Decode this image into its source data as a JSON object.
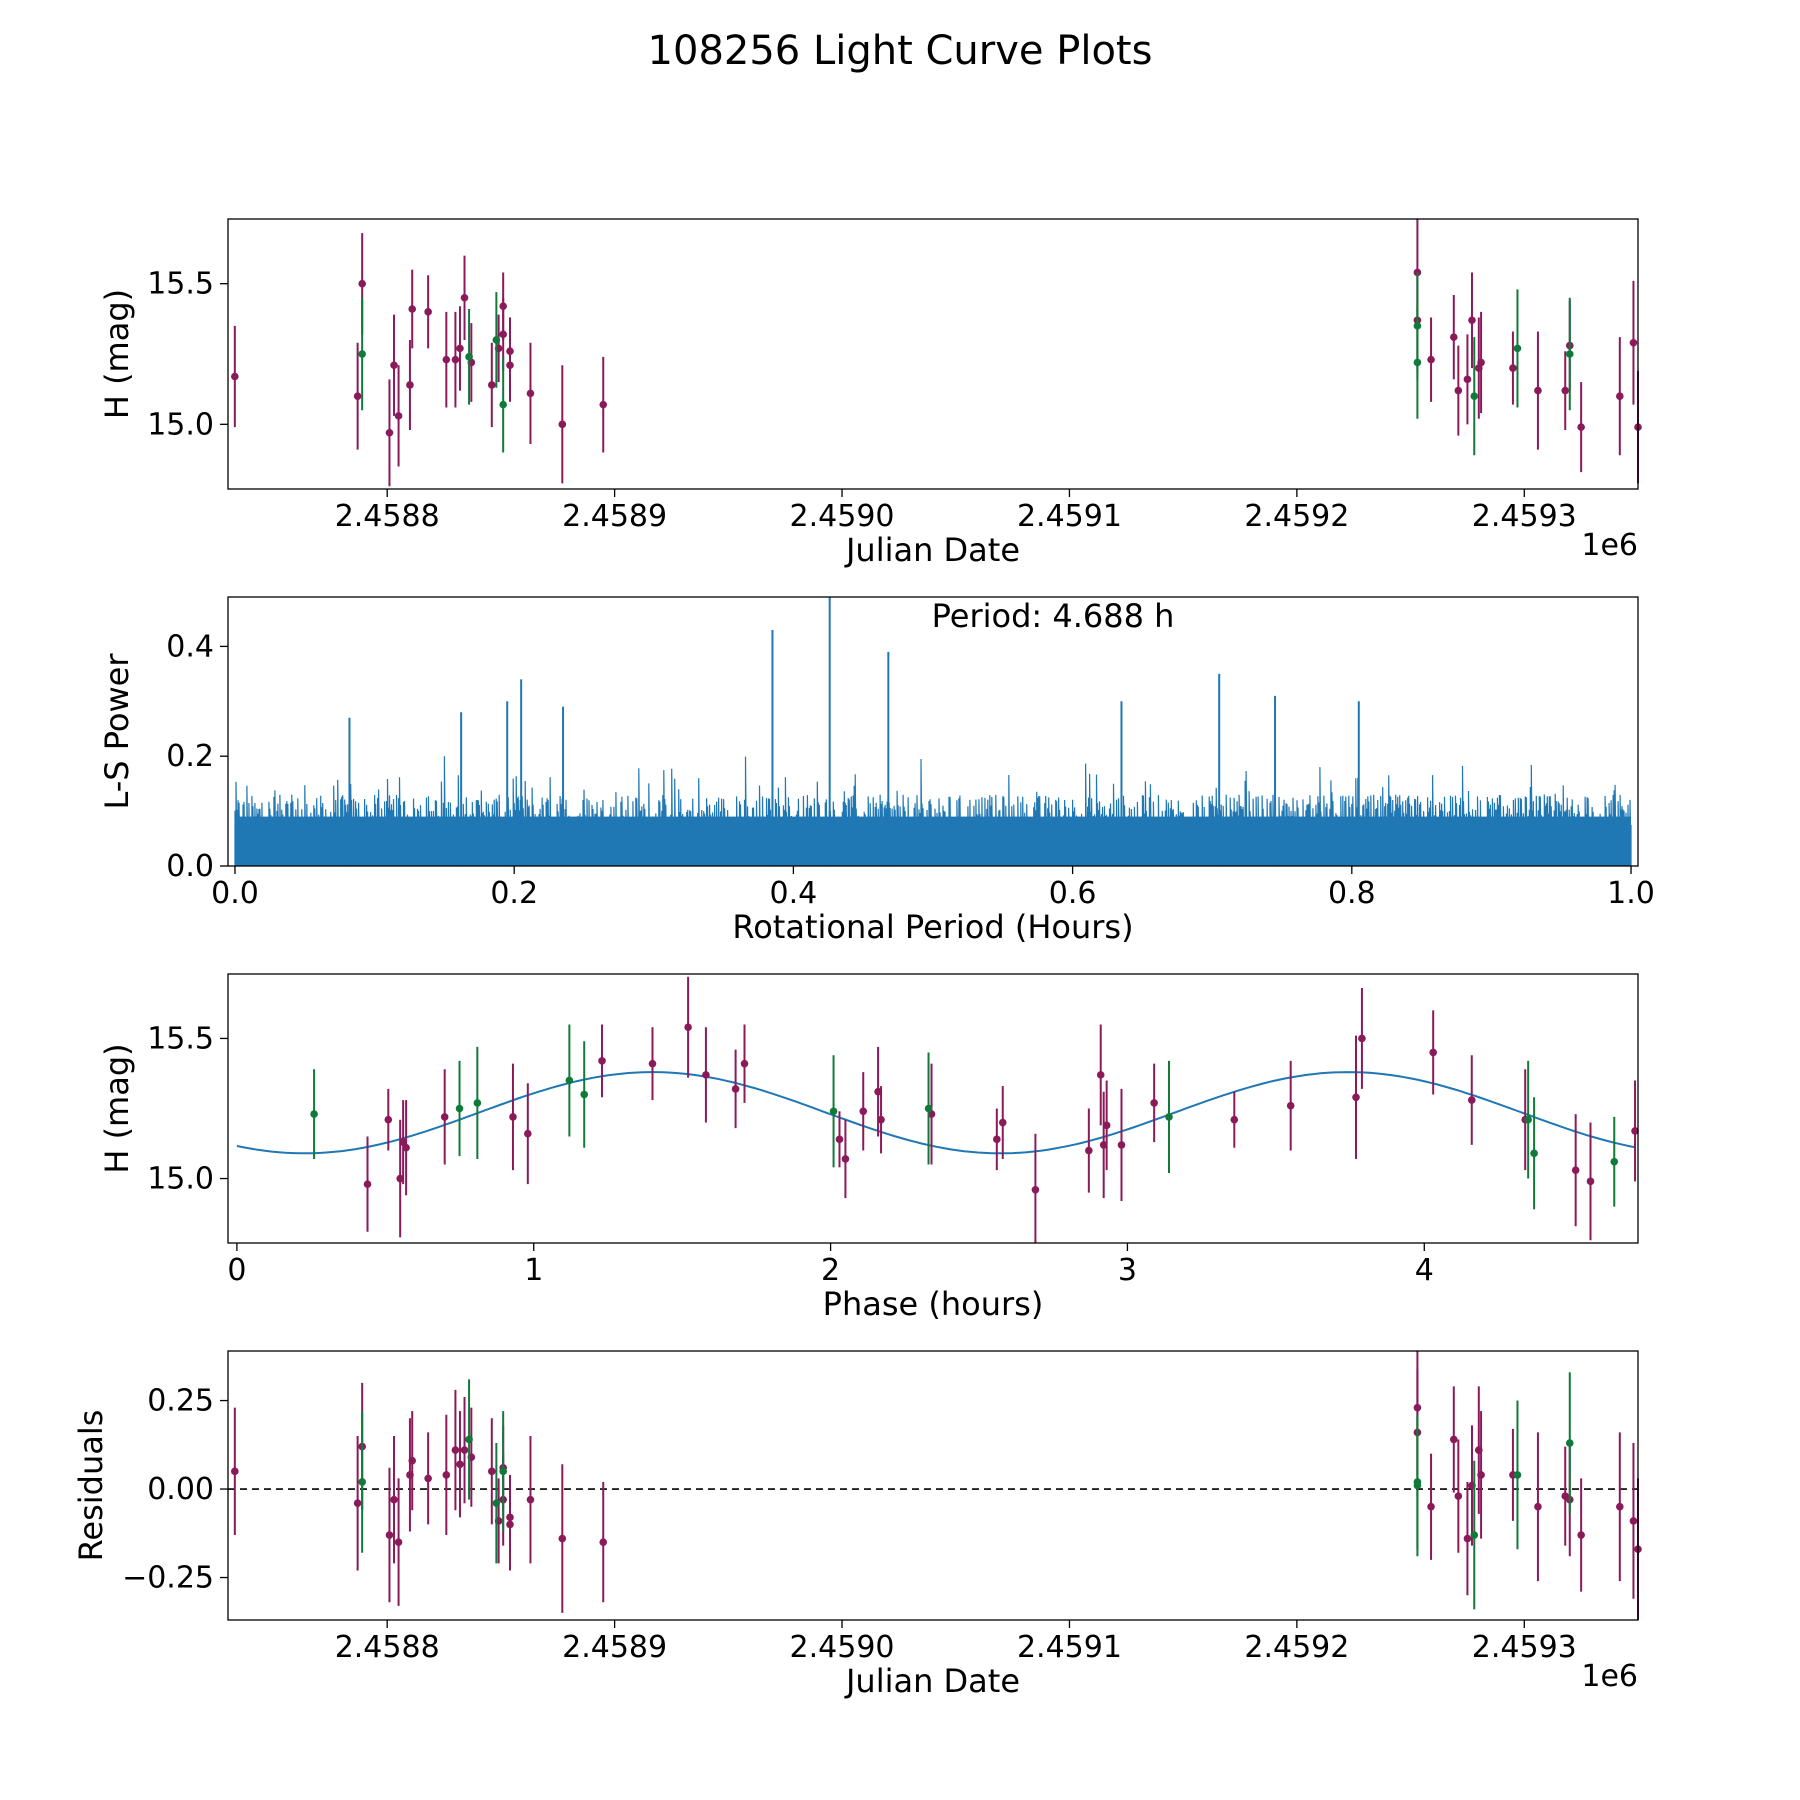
{
  "figure": {
    "title": "108256 Light Curve Plots"
  },
  "colors": {
    "purple": "#8B1A5A",
    "green": "#107A3A",
    "blue": "#1F77B4",
    "axis": "#000000"
  },
  "chart_data": [
    {
      "id": "lc",
      "type": "scatter",
      "xlabel": "Julian Date",
      "ylabel": "H (mag)",
      "offset_label": "1e6",
      "xlim": [
        2458730,
        2459350
      ],
      "ylim": [
        14.77,
        15.73
      ],
      "xticks": [
        2458800,
        2458900,
        2459000,
        2459100,
        2459200,
        2459300
      ],
      "xtick_labels": [
        "2.4588",
        "2.4589",
        "2.4590",
        "2.4591",
        "2.4592",
        "2.4593"
      ],
      "yticks": [
        15.0,
        15.5
      ],
      "ytick_labels": [
        "15.0",
        "15.5"
      ],
      "series": [
        {
          "name": "purple",
          "points": [
            [
              2458733,
              15.17,
              0.18
            ],
            [
              2458787,
              15.1,
              0.19
            ],
            [
              2458789,
              15.5,
              0.18
            ],
            [
              2458801,
              14.97,
              0.19
            ],
            [
              2458803,
              15.21,
              0.18
            ],
            [
              2458805,
              15.03,
              0.18
            ],
            [
              2458810,
              15.14,
              0.16
            ],
            [
              2458811,
              15.41,
              0.14
            ],
            [
              2458818,
              15.4,
              0.13
            ],
            [
              2458826,
              15.23,
              0.17
            ],
            [
              2458830,
              15.23,
              0.17
            ],
            [
              2458832,
              15.27,
              0.15
            ],
            [
              2458834,
              15.45,
              0.15
            ],
            [
              2458837,
              15.22,
              0.14
            ],
            [
              2458846,
              15.14,
              0.15
            ],
            [
              2458849,
              15.27,
              0.12
            ],
            [
              2458851,
              15.42,
              0.12
            ],
            [
              2458851,
              15.32,
              0.13
            ],
            [
              2458854,
              15.26,
              0.12
            ],
            [
              2458854,
              15.21,
              0.13
            ],
            [
              2458863,
              15.11,
              0.18
            ],
            [
              2458877,
              15.0,
              0.21
            ],
            [
              2458895,
              15.07,
              0.17
            ],
            [
              2459253,
              15.54,
              0.19
            ],
            [
              2459253,
              15.37,
              0.18
            ],
            [
              2459259,
              15.23,
              0.15
            ],
            [
              2459269,
              15.31,
              0.15
            ],
            [
              2459271,
              15.12,
              0.16
            ],
            [
              2459275,
              15.16,
              0.16
            ],
            [
              2459277,
              15.37,
              0.17
            ],
            [
              2459280,
              15.2,
              0.18
            ],
            [
              2459281,
              15.22,
              0.18
            ],
            [
              2459295,
              15.2,
              0.13
            ],
            [
              2459306,
              15.12,
              0.21
            ],
            [
              2459318,
              15.12,
              0.14
            ],
            [
              2459320,
              15.28,
              0.16
            ],
            [
              2459325,
              14.99,
              0.16
            ],
            [
              2459342,
              15.1,
              0.21
            ],
            [
              2459348,
              15.29,
              0.22
            ],
            [
              2459350,
              14.99,
              0.2
            ]
          ]
        },
        {
          "name": "green",
          "points": [
            [
              2458789,
              15.25,
              0.2
            ],
            [
              2458836,
              15.24,
              0.17
            ],
            [
              2458848,
              15.3,
              0.17
            ],
            [
              2458851,
              15.07,
              0.17
            ],
            [
              2459253,
              15.35,
              0.19
            ],
            [
              2459253,
              15.22,
              0.2
            ],
            [
              2459278,
              15.1,
              0.21
            ],
            [
              2459297,
              15.27,
              0.21
            ],
            [
              2459320,
              15.25,
              0.2
            ]
          ]
        }
      ]
    },
    {
      "id": "ls",
      "type": "line",
      "xlabel": "Rotational Period (Hours)",
      "ylabel": "L-S Power",
      "annotation": "Period: 4.688 h",
      "xlim": [
        -0.005,
        1.005
      ],
      "ylim": [
        0,
        0.49
      ],
      "xticks": [
        0.0,
        0.2,
        0.4,
        0.6,
        0.8,
        1.0
      ],
      "xtick_labels": [
        "0.0",
        "0.2",
        "0.4",
        "0.6",
        "0.8",
        "1.0"
      ],
      "yticks": [
        0.0,
        0.2,
        0.4
      ],
      "ytick_labels": [
        "0.0",
        "0.2",
        "0.4"
      ],
      "peaks": [
        [
          0.385,
          0.43
        ],
        [
          0.426,
          0.49
        ],
        [
          0.468,
          0.39
        ],
        [
          0.705,
          0.35
        ],
        [
          0.205,
          0.34
        ],
        [
          0.745,
          0.31
        ],
        [
          0.805,
          0.3
        ],
        [
          0.195,
          0.3
        ],
        [
          0.635,
          0.3
        ],
        [
          0.082,
          0.27
        ],
        [
          0.162,
          0.28
        ],
        [
          0.235,
          0.29
        ]
      ],
      "noise_level": 0.13
    },
    {
      "id": "phase",
      "type": "scatter",
      "xlabel": "Phase (hours)",
      "ylabel": "H (mag)",
      "xlim": [
        -0.03,
        4.72
      ],
      "ylim": [
        14.77,
        15.73
      ],
      "xticks": [
        0,
        1,
        2,
        3,
        4
      ],
      "xtick_labels": [
        "0",
        "1",
        "2",
        "3",
        "4"
      ],
      "yticks": [
        15.0,
        15.5
      ],
      "ytick_labels": [
        "15.0",
        "15.5"
      ],
      "model": {
        "mean": 15.235,
        "amplitude": 0.145,
        "peak_phase": 1.4,
        "period": 2.344
      },
      "series": [
        {
          "name": "purple",
          "points": [
            [
              0.44,
              14.98,
              0.17
            ],
            [
              0.51,
              15.21,
              0.11
            ],
            [
              0.55,
              15.0,
              0.21
            ],
            [
              0.56,
              15.13,
              0.15
            ],
            [
              0.57,
              15.11,
              0.17
            ],
            [
              0.7,
              15.22,
              0.17
            ],
            [
              0.93,
              15.22,
              0.19
            ],
            [
              0.98,
              15.16,
              0.18
            ],
            [
              1.23,
              15.42,
              0.13
            ],
            [
              1.4,
              15.41,
              0.13
            ],
            [
              1.52,
              15.54,
              0.18
            ],
            [
              1.58,
              15.37,
              0.17
            ],
            [
              1.68,
              15.32,
              0.14
            ],
            [
              1.71,
              15.41,
              0.14
            ],
            [
              2.03,
              15.14,
              0.1
            ],
            [
              2.05,
              15.07,
              0.14
            ],
            [
              2.11,
              15.24,
              0.14
            ],
            [
              2.16,
              15.31,
              0.16
            ],
            [
              2.17,
              15.21,
              0.12
            ],
            [
              2.34,
              15.23,
              0.18
            ],
            [
              2.56,
              15.14,
              0.11
            ],
            [
              2.58,
              15.2,
              0.13
            ],
            [
              2.69,
              14.96,
              0.2
            ],
            [
              2.87,
              15.1,
              0.15
            ],
            [
              2.91,
              15.37,
              0.18
            ],
            [
              2.92,
              15.12,
              0.19
            ],
            [
              2.93,
              15.19,
              0.16
            ],
            [
              2.98,
              15.12,
              0.2
            ],
            [
              3.09,
              15.27,
              0.14
            ],
            [
              3.36,
              15.21,
              0.1
            ],
            [
              3.55,
              15.26,
              0.16
            ],
            [
              3.77,
              15.29,
              0.22
            ],
            [
              3.79,
              15.5,
              0.18
            ],
            [
              4.03,
              15.45,
              0.15
            ],
            [
              4.16,
              15.28,
              0.16
            ],
            [
              4.34,
              15.21,
              0.18
            ],
            [
              4.51,
              15.03,
              0.2
            ],
            [
              4.56,
              14.99,
              0.21
            ],
            [
              4.71,
              15.17,
              0.18
            ]
          ]
        },
        {
          "name": "green",
          "points": [
            [
              0.26,
              15.23,
              0.16
            ],
            [
              0.75,
              15.25,
              0.17
            ],
            [
              0.81,
              15.27,
              0.2
            ],
            [
              1.12,
              15.35,
              0.2
            ],
            [
              1.17,
              15.3,
              0.19
            ],
            [
              2.01,
              15.24,
              0.2
            ],
            [
              2.33,
              15.25,
              0.2
            ],
            [
              3.14,
              15.22,
              0.2
            ],
            [
              4.35,
              15.21,
              0.21
            ],
            [
              4.37,
              15.09,
              0.2
            ],
            [
              4.64,
              15.06,
              0.16
            ]
          ]
        }
      ]
    },
    {
      "id": "resid",
      "type": "scatter",
      "xlabel": "Julian Date",
      "ylabel": "Residuals",
      "offset_label": "1e6",
      "xlim": [
        2458730,
        2459350
      ],
      "ylim": [
        -0.37,
        0.39
      ],
      "xticks": [
        2458800,
        2458900,
        2459000,
        2459100,
        2459200,
        2459300
      ],
      "xtick_labels": [
        "2.4588",
        "2.4589",
        "2.4590",
        "2.4591",
        "2.4592",
        "2.4593"
      ],
      "yticks": [
        0.25,
        0.0,
        -0.25
      ],
      "ytick_labels": [
        "0.25",
        "0.00",
        "−0.25"
      ],
      "baseline": 0,
      "series": [
        {
          "name": "purple",
          "points": [
            [
              2458733,
              0.05,
              0.18
            ],
            [
              2458787,
              -0.04,
              0.19
            ],
            [
              2458789,
              0.12,
              0.18
            ],
            [
              2458801,
              -0.13,
              0.19
            ],
            [
              2458803,
              -0.03,
              0.18
            ],
            [
              2458805,
              -0.15,
              0.18
            ],
            [
              2458810,
              0.04,
              0.16
            ],
            [
              2458811,
              0.08,
              0.14
            ],
            [
              2458818,
              0.03,
              0.13
            ],
            [
              2458826,
              0.04,
              0.17
            ],
            [
              2458830,
              0.11,
              0.17
            ],
            [
              2458832,
              0.07,
              0.15
            ],
            [
              2458834,
              0.11,
              0.15
            ],
            [
              2458837,
              0.09,
              0.14
            ],
            [
              2458846,
              0.05,
              0.15
            ],
            [
              2458849,
              -0.09,
              0.12
            ],
            [
              2458851,
              0.06,
              0.12
            ],
            [
              2458851,
              -0.03,
              0.13
            ],
            [
              2458854,
              -0.08,
              0.12
            ],
            [
              2458854,
              -0.1,
              0.13
            ],
            [
              2458863,
              -0.03,
              0.18
            ],
            [
              2458877,
              -0.14,
              0.21
            ],
            [
              2458895,
              -0.15,
              0.17
            ],
            [
              2459253,
              0.23,
              0.19
            ],
            [
              2459253,
              0.16,
              0.18
            ],
            [
              2459259,
              -0.05,
              0.15
            ],
            [
              2459269,
              0.14,
              0.15
            ],
            [
              2459271,
              -0.02,
              0.16
            ],
            [
              2459275,
              -0.14,
              0.16
            ],
            [
              2459277,
              0.01,
              0.17
            ],
            [
              2459280,
              0.11,
              0.18
            ],
            [
              2459281,
              0.04,
              0.18
            ],
            [
              2459295,
              0.04,
              0.13
            ],
            [
              2459306,
              -0.05,
              0.21
            ],
            [
              2459318,
              -0.02,
              0.14
            ],
            [
              2459320,
              -0.03,
              0.16
            ],
            [
              2459325,
              -0.13,
              0.16
            ],
            [
              2459342,
              -0.05,
              0.21
            ],
            [
              2459348,
              -0.09,
              0.22
            ],
            [
              2459350,
              -0.17,
              0.2
            ]
          ]
        },
        {
          "name": "green",
          "points": [
            [
              2458789,
              0.02,
              0.2
            ],
            [
              2458836,
              0.14,
              0.17
            ],
            [
              2458848,
              -0.04,
              0.17
            ],
            [
              2458851,
              0.05,
              0.17
            ],
            [
              2459253,
              0.02,
              0.19
            ],
            [
              2459253,
              0.01,
              0.2
            ],
            [
              2459278,
              -0.13,
              0.21
            ],
            [
              2459297,
              0.04,
              0.21
            ],
            [
              2459320,
              0.13,
              0.2
            ]
          ]
        }
      ]
    }
  ]
}
